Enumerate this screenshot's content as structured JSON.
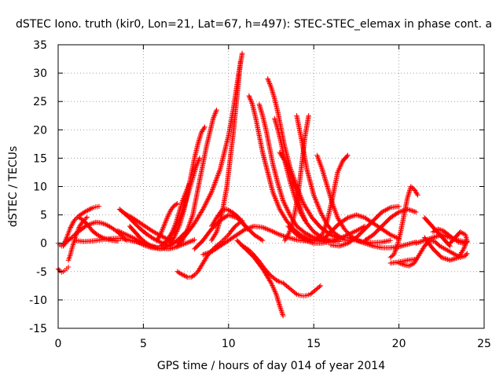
{
  "chart_data": {
    "type": "scatter",
    "title": "dSTEC Iono. truth (kir0, Lon=21, Lat=67, h=497): STEC-STEC_elemax in phase cont. a",
    "xlabel": "GPS time / hours of day 014 of year 2014",
    "ylabel": "dSTEC  / TECUs",
    "xlim": [
      0,
      25
    ],
    "ylim": [
      -15,
      35
    ],
    "xticks": [
      0,
      5,
      10,
      15,
      20,
      25
    ],
    "yticks": [
      -15,
      -10,
      -5,
      0,
      5,
      10,
      15,
      20,
      25,
      30,
      35
    ],
    "xtick_labels": [
      "0",
      "5",
      "10",
      "15",
      "20",
      "25"
    ],
    "ytick_labels": [
      "-15",
      "-10",
      "-5",
      "0",
      "5",
      "10",
      "15",
      "20",
      "25",
      "30",
      "35"
    ],
    "grid": true,
    "marker": "+",
    "color": "#ff0000",
    "series": [
      {
        "x": [
          0,
          0.1,
          0.2,
          0.3,
          0.4,
          0.5,
          0.6,
          0.7,
          0.8,
          0.9,
          1.0,
          1.2,
          1.4,
          1.6,
          1.8,
          2.0,
          2.2,
          2.4
        ],
        "y": [
          0,
          -0.3,
          -0.5,
          -0.2,
          0.3,
          1.0,
          1.8,
          2.6,
          3.2,
          3.8,
          4.2,
          4.8,
          5.2,
          5.6,
          5.9,
          6.2,
          6.4,
          6.5
        ]
      },
      {
        "x": [
          0.3,
          0.5,
          0.8,
          1.0,
          1.3,
          1.6,
          1.9,
          2.2,
          2.5,
          2.8,
          3.1,
          3.4,
          3.7,
          4.0
        ],
        "y": [
          -0.5,
          0.3,
          1.0,
          1.6,
          2.3,
          3.0,
          3.4,
          3.7,
          3.6,
          3.3,
          2.8,
          2.2,
          1.4,
          0.5
        ]
      },
      {
        "x": [
          0,
          0.1,
          0.2,
          0.3,
          0.4,
          0.5,
          0.6
        ],
        "y": [
          -4.5,
          -4.9,
          -5.1,
          -5.0,
          -4.8,
          -4.5,
          -4.2
        ]
      },
      {
        "x": [
          0.6,
          0.7,
          0.8,
          0.9,
          1.0,
          1.1,
          1.2,
          1.3,
          1.5,
          1.7
        ],
        "y": [
          -3.0,
          -2.2,
          -1.0,
          0.0,
          1.0,
          1.8,
          2.6,
          3.2,
          4.0,
          4.6
        ]
      },
      {
        "x": [
          1.2,
          1.5,
          1.8,
          2.0,
          2.3,
          2.6,
          2.9,
          3.2,
          3.5
        ],
        "y": [
          4.6,
          4.0,
          3.0,
          2.2,
          1.5,
          1.0,
          0.7,
          0.5,
          0.4
        ]
      },
      {
        "x": [
          1.0,
          1.5,
          2.0,
          2.5,
          3.0,
          3.5,
          4.0,
          4.5,
          5.0
        ],
        "y": [
          0.5,
          0.3,
          0.4,
          0.6,
          0.8,
          0.9,
          0.7,
          0.3,
          0.0
        ]
      },
      {
        "x": [
          3.6,
          4.0,
          4.4,
          4.8,
          5.2,
          5.6,
          6.0,
          6.4
        ],
        "y": [
          6.0,
          5.0,
          3.8,
          2.6,
          1.6,
          0.8,
          0.2,
          -0.3
        ]
      },
      {
        "x": [
          3.9,
          4.3,
          4.7,
          5.1,
          5.5,
          5.9,
          6.3,
          6.7
        ],
        "y": [
          5.2,
          4.6,
          3.8,
          3.0,
          2.2,
          1.5,
          0.9,
          0.5
        ]
      },
      {
        "x": [
          4.2,
          4.5,
          4.8,
          5.1,
          5.4,
          5.7,
          6.0
        ],
        "y": [
          3.0,
          2.0,
          1.0,
          0.2,
          -0.4,
          -0.7,
          -0.9
        ]
      },
      {
        "x": [
          3.5,
          4.0,
          4.5,
          5.0,
          5.5,
          6.0,
          6.5,
          7.0,
          7.5,
          8.0
        ],
        "y": [
          2.2,
          1.5,
          0.8,
          0.0,
          -0.6,
          -0.9,
          -1.0,
          -0.6,
          0.0,
          0.6
        ]
      },
      {
        "x": [
          4.5,
          5.0,
          5.5,
          6.0,
          6.5,
          7.0,
          7.5
        ],
        "y": [
          0.5,
          -0.3,
          -0.8,
          -1.0,
          -0.5,
          0.5,
          2.0
        ]
      },
      {
        "x": [
          5.8,
          6.0,
          6.2,
          6.4,
          6.6,
          6.8,
          7.0
        ],
        "y": [
          0.5,
          1.5,
          3.0,
          4.5,
          5.8,
          6.6,
          7.0
        ]
      },
      {
        "x": [
          6.0,
          6.3,
          6.6,
          6.9,
          7.2,
          7.5,
          7.7,
          7.9,
          8.1,
          8.3
        ],
        "y": [
          -0.5,
          0.2,
          1.2,
          2.8,
          4.8,
          7.5,
          9.5,
          11.5,
          13.5,
          15.0
        ]
      },
      {
        "x": [
          6.5,
          6.8,
          7.1,
          7.4,
          7.6,
          7.8,
          8.0,
          8.2,
          8.4,
          8.6
        ],
        "y": [
          0.0,
          1.0,
          3.0,
          6.0,
          9.0,
          12.0,
          15.0,
          17.5,
          19.5,
          20.5
        ]
      },
      {
        "x": [
          7.0,
          7.3,
          7.6,
          7.9,
          8.1,
          8.3,
          8.5,
          8.7,
          8.9,
          9.1,
          9.3
        ],
        "y": [
          -0.5,
          0.5,
          2.5,
          5.0,
          8.0,
          11.0,
          14.0,
          17.0,
          19.5,
          22.0,
          23.5
        ]
      },
      {
        "x": [
          6.5,
          6.7,
          6.9,
          7.1,
          7.3,
          7.5,
          7.7
        ],
        "y": [
          1.0,
          2.0,
          3.5,
          5.5,
          7.5,
          9.0,
          10.5
        ]
      },
      {
        "x": [
          7.0,
          7.5,
          8.0,
          8.5,
          9.0,
          9.5,
          10.0,
          10.3,
          10.6,
          10.8
        ],
        "y": [
          0.0,
          1.5,
          3.5,
          6.0,
          9.0,
          13.0,
          19.0,
          24.0,
          30.0,
          33.5
        ]
      },
      {
        "x": [
          9.0,
          9.3,
          9.6,
          9.9,
          10.1,
          10.3,
          10.5,
          10.7
        ],
        "y": [
          0.5,
          2.0,
          5.0,
          10.0,
          15.0,
          20.0,
          26.0,
          32.0
        ]
      },
      {
        "x": [
          7.0,
          7.2,
          7.4,
          7.6,
          7.8,
          8.0,
          8.2,
          8.4,
          8.6,
          8.8,
          9.0,
          9.2,
          9.4,
          9.6,
          9.8,
          10.0,
          10.2,
          10.4,
          10.6,
          10.8
        ],
        "y": [
          -5.0,
          -5.4,
          -5.7,
          -6.0,
          -6.0,
          -5.6,
          -5.0,
          -4.0,
          -3.0,
          -2.0,
          -1.3,
          -0.7,
          -0.2,
          0.3,
          0.9,
          1.5,
          2.3,
          3.0,
          3.5,
          4.0
        ]
      },
      {
        "x": [
          8.0,
          8.5,
          9.0,
          9.5,
          10.0,
          10.5,
          11.0,
          11.5,
          12.0
        ],
        "y": [
          -1.0,
          0.5,
          2.5,
          4.0,
          5.0,
          4.5,
          3.0,
          1.5,
          0.5
        ]
      },
      {
        "x": [
          9.0,
          9.3,
          9.6,
          9.9,
          10.2,
          10.5,
          10.8,
          11.1
        ],
        "y": [
          3.0,
          4.5,
          5.8,
          6.0,
          5.5,
          4.8,
          3.8,
          2.5
        ]
      },
      {
        "x": [
          8.5,
          9.0,
          9.5,
          10.0,
          10.5,
          11.0,
          11.5,
          12.0,
          12.5,
          13.0,
          13.5,
          14.0,
          14.5
        ],
        "y": [
          -2.0,
          -1.5,
          -0.5,
          0.5,
          1.5,
          2.5,
          3.0,
          2.8,
          2.2,
          1.5,
          1.0,
          0.6,
          0.4
        ]
      },
      {
        "x": [
          10.8,
          11.0,
          11.2,
          11.4,
          11.6,
          11.8,
          12.0,
          12.2,
          12.4,
          12.6,
          12.8,
          13.0,
          13.2,
          13.4,
          13.6,
          13.8,
          14.0,
          14.2,
          14.4,
          14.6,
          14.8,
          15.0,
          15.2,
          15.4
        ],
        "y": [
          -0.5,
          -0.8,
          -1.2,
          -1.8,
          -2.5,
          -3.2,
          -4.0,
          -4.8,
          -5.5,
          -6.0,
          -6.5,
          -6.8,
          -7.0,
          -7.5,
          -8.0,
          -8.5,
          -9.0,
          -9.2,
          -9.3,
          -9.2,
          -9.0,
          -8.5,
          -8.0,
          -7.5
        ]
      },
      {
        "x": [
          10.5,
          11.0,
          11.5,
          12.0,
          12.5,
          12.8,
          13.0,
          13.2
        ],
        "y": [
          0.5,
          -1.0,
          -2.5,
          -4.5,
          -7.0,
          -9.0,
          -11.0,
          -12.8
        ]
      },
      {
        "x": [
          11.2,
          11.4,
          11.6,
          11.8,
          12.0,
          12.3,
          12.6,
          13.0,
          13.4,
          13.8,
          14.2,
          14.6,
          15.0,
          15.5
        ],
        "y": [
          26.0,
          24.5,
          22.0,
          19.0,
          16.0,
          12.5,
          9.0,
          6.0,
          4.0,
          2.5,
          1.5,
          0.9,
          0.5,
          0.3
        ]
      },
      {
        "x": [
          11.8,
          12.0,
          12.2,
          12.4,
          12.6,
          12.9,
          13.2,
          13.6,
          14.0,
          14.5,
          15.0,
          15.5,
          16.0
        ],
        "y": [
          24.5,
          22.5,
          20.0,
          17.0,
          14.0,
          10.5,
          7.5,
          5.0,
          3.0,
          1.8,
          1.0,
          0.5,
          0.3
        ]
      },
      {
        "x": [
          12.3,
          12.5,
          12.7,
          12.9,
          13.1,
          13.3,
          13.6,
          14.0,
          14.4,
          14.9,
          15.4,
          16.0,
          16.5,
          17.0
        ],
        "y": [
          29.0,
          27.5,
          25.5,
          23.0,
          20.0,
          17.0,
          13.5,
          10.0,
          7.0,
          4.5,
          2.8,
          1.5,
          0.8,
          0.5
        ]
      },
      {
        "x": [
          12.7,
          12.9,
          13.1,
          13.3,
          13.6,
          13.9,
          14.2,
          14.6,
          15.0,
          15.5,
          16.0,
          16.5
        ],
        "y": [
          22.0,
          20.0,
          17.5,
          14.5,
          11.0,
          8.0,
          5.5,
          3.5,
          2.0,
          1.0,
          0.5,
          0.3
        ]
      },
      {
        "x": [
          13.0,
          13.3,
          13.6,
          13.9,
          14.1,
          14.3,
          14.5
        ],
        "y": [
          16.0,
          14.5,
          12.5,
          10.0,
          7.5,
          5.5,
          4.0
        ]
      },
      {
        "x": [
          13.3,
          13.5,
          13.7,
          13.9,
          14.1,
          14.3,
          14.5,
          14.7
        ],
        "y": [
          0.5,
          1.5,
          3.0,
          5.5,
          9.0,
          14.0,
          19.0,
          22.5
        ]
      },
      {
        "x": [
          14.0,
          14.3,
          14.6,
          15.0,
          15.4,
          15.8,
          16.2,
          16.6
        ],
        "y": [
          22.5,
          18.0,
          13.0,
          8.5,
          5.5,
          3.2,
          1.8,
          1.0
        ]
      },
      {
        "x": [
          13.5,
          14.0,
          14.5,
          15.0,
          15.5,
          16.0,
          16.5,
          17.0,
          17.5,
          18.0
        ],
        "y": [
          3.0,
          1.5,
          0.5,
          0.0,
          0.0,
          0.3,
          0.8,
          1.5,
          2.2,
          3.0
        ]
      },
      {
        "x": [
          14.5,
          15.0,
          15.5,
          15.8,
          16.1,
          16.4,
          16.7,
          17.0
        ],
        "y": [
          0.5,
          0.5,
          1.5,
          4.0,
          8.0,
          12.5,
          14.5,
          15.5
        ]
      },
      {
        "x": [
          15.2,
          15.5,
          15.8,
          16.1,
          16.4,
          16.8,
          17.2,
          17.6,
          18.0,
          18.5,
          19.0,
          19.5
        ],
        "y": [
          15.5,
          13.0,
          10.0,
          7.0,
          4.5,
          2.5,
          1.2,
          0.5,
          0.2,
          0.1,
          0.2,
          0.5
        ]
      },
      {
        "x": [
          15.5,
          16.0,
          16.5,
          17.0,
          17.5,
          18.0,
          18.5,
          19.0,
          19.5,
          20.0
        ],
        "y": [
          0.5,
          2.0,
          3.5,
          4.5,
          5.0,
          4.5,
          3.5,
          2.5,
          1.5,
          0.8
        ]
      },
      {
        "x": [
          16.0,
          16.5,
          17.0,
          17.5,
          18.0,
          18.5,
          19.0,
          19.5,
          20.0
        ],
        "y": [
          -0.3,
          -0.5,
          0.0,
          1.0,
          2.5,
          4.0,
          5.5,
          6.3,
          6.5
        ]
      },
      {
        "x": [
          17.0,
          17.5,
          18.0,
          18.5,
          19.0,
          19.5,
          20.0,
          20.5,
          21.0
        ],
        "y": [
          1.0,
          0.5,
          0.0,
          -0.5,
          -0.8,
          -0.8,
          -0.6,
          -0.2,
          0.2
        ]
      },
      {
        "x": [
          18.0,
          18.5,
          19.0,
          19.5,
          20.0,
          20.5,
          21.0
        ],
        "y": [
          0.5,
          1.5,
          3.0,
          4.5,
          5.5,
          6.0,
          5.5
        ]
      },
      {
        "x": [
          19.5,
          19.7,
          19.9,
          20.1,
          20.3,
          20.5,
          20.7,
          20.9,
          21.1
        ],
        "y": [
          -2.5,
          -2.0,
          -0.5,
          2.0,
          5.0,
          8.0,
          10.0,
          9.5,
          8.5
        ]
      },
      {
        "x": [
          19.5,
          20.0,
          20.5,
          21.0
        ],
        "y": [
          -3.5,
          -3.3,
          -3.0,
          -2.8
        ]
      },
      {
        "x": [
          20.0,
          20.3,
          20.6,
          20.9,
          21.2,
          21.5,
          21.8,
          22.1,
          22.4,
          22.7,
          23.0,
          23.3,
          23.6,
          23.9,
          24.0
        ],
        "y": [
          -3.5,
          -3.8,
          -4.0,
          -3.5,
          -2.0,
          -0.5,
          0.5,
          0.3,
          -0.5,
          -1.0,
          -1.5,
          -2.0,
          -2.5,
          -2.2,
          -1.8
        ]
      },
      {
        "x": [
          21.0,
          21.5,
          22.0,
          22.5,
          23.0,
          23.5,
          24.0
        ],
        "y": [
          0.0,
          0.5,
          1.0,
          1.5,
          1.0,
          0.5,
          0.2
        ]
      },
      {
        "x": [
          21.5,
          21.8,
          22.1,
          22.4,
          22.7,
          23.0
        ],
        "y": [
          4.5,
          3.5,
          2.5,
          1.5,
          0.5,
          -0.5
        ]
      },
      {
        "x": [
          22.0,
          22.3,
          22.6,
          22.9,
          23.2,
          23.5,
          23.8,
          24.0
        ],
        "y": [
          2.0,
          2.5,
          2.2,
          1.5,
          0.8,
          0.2,
          0.0,
          0.3
        ]
      },
      {
        "x": [
          21.5,
          22.0,
          22.5,
          23.0,
          23.5,
          23.8,
          24.0
        ],
        "y": [
          1.0,
          -1.0,
          -2.5,
          -3.0,
          -2.5,
          -1.0,
          0.5
        ]
      },
      {
        "x": [
          23.0,
          23.3,
          23.6,
          23.9,
          24.0
        ],
        "y": [
          0.0,
          1.0,
          2.0,
          1.5,
          0.5
        ]
      }
    ]
  }
}
